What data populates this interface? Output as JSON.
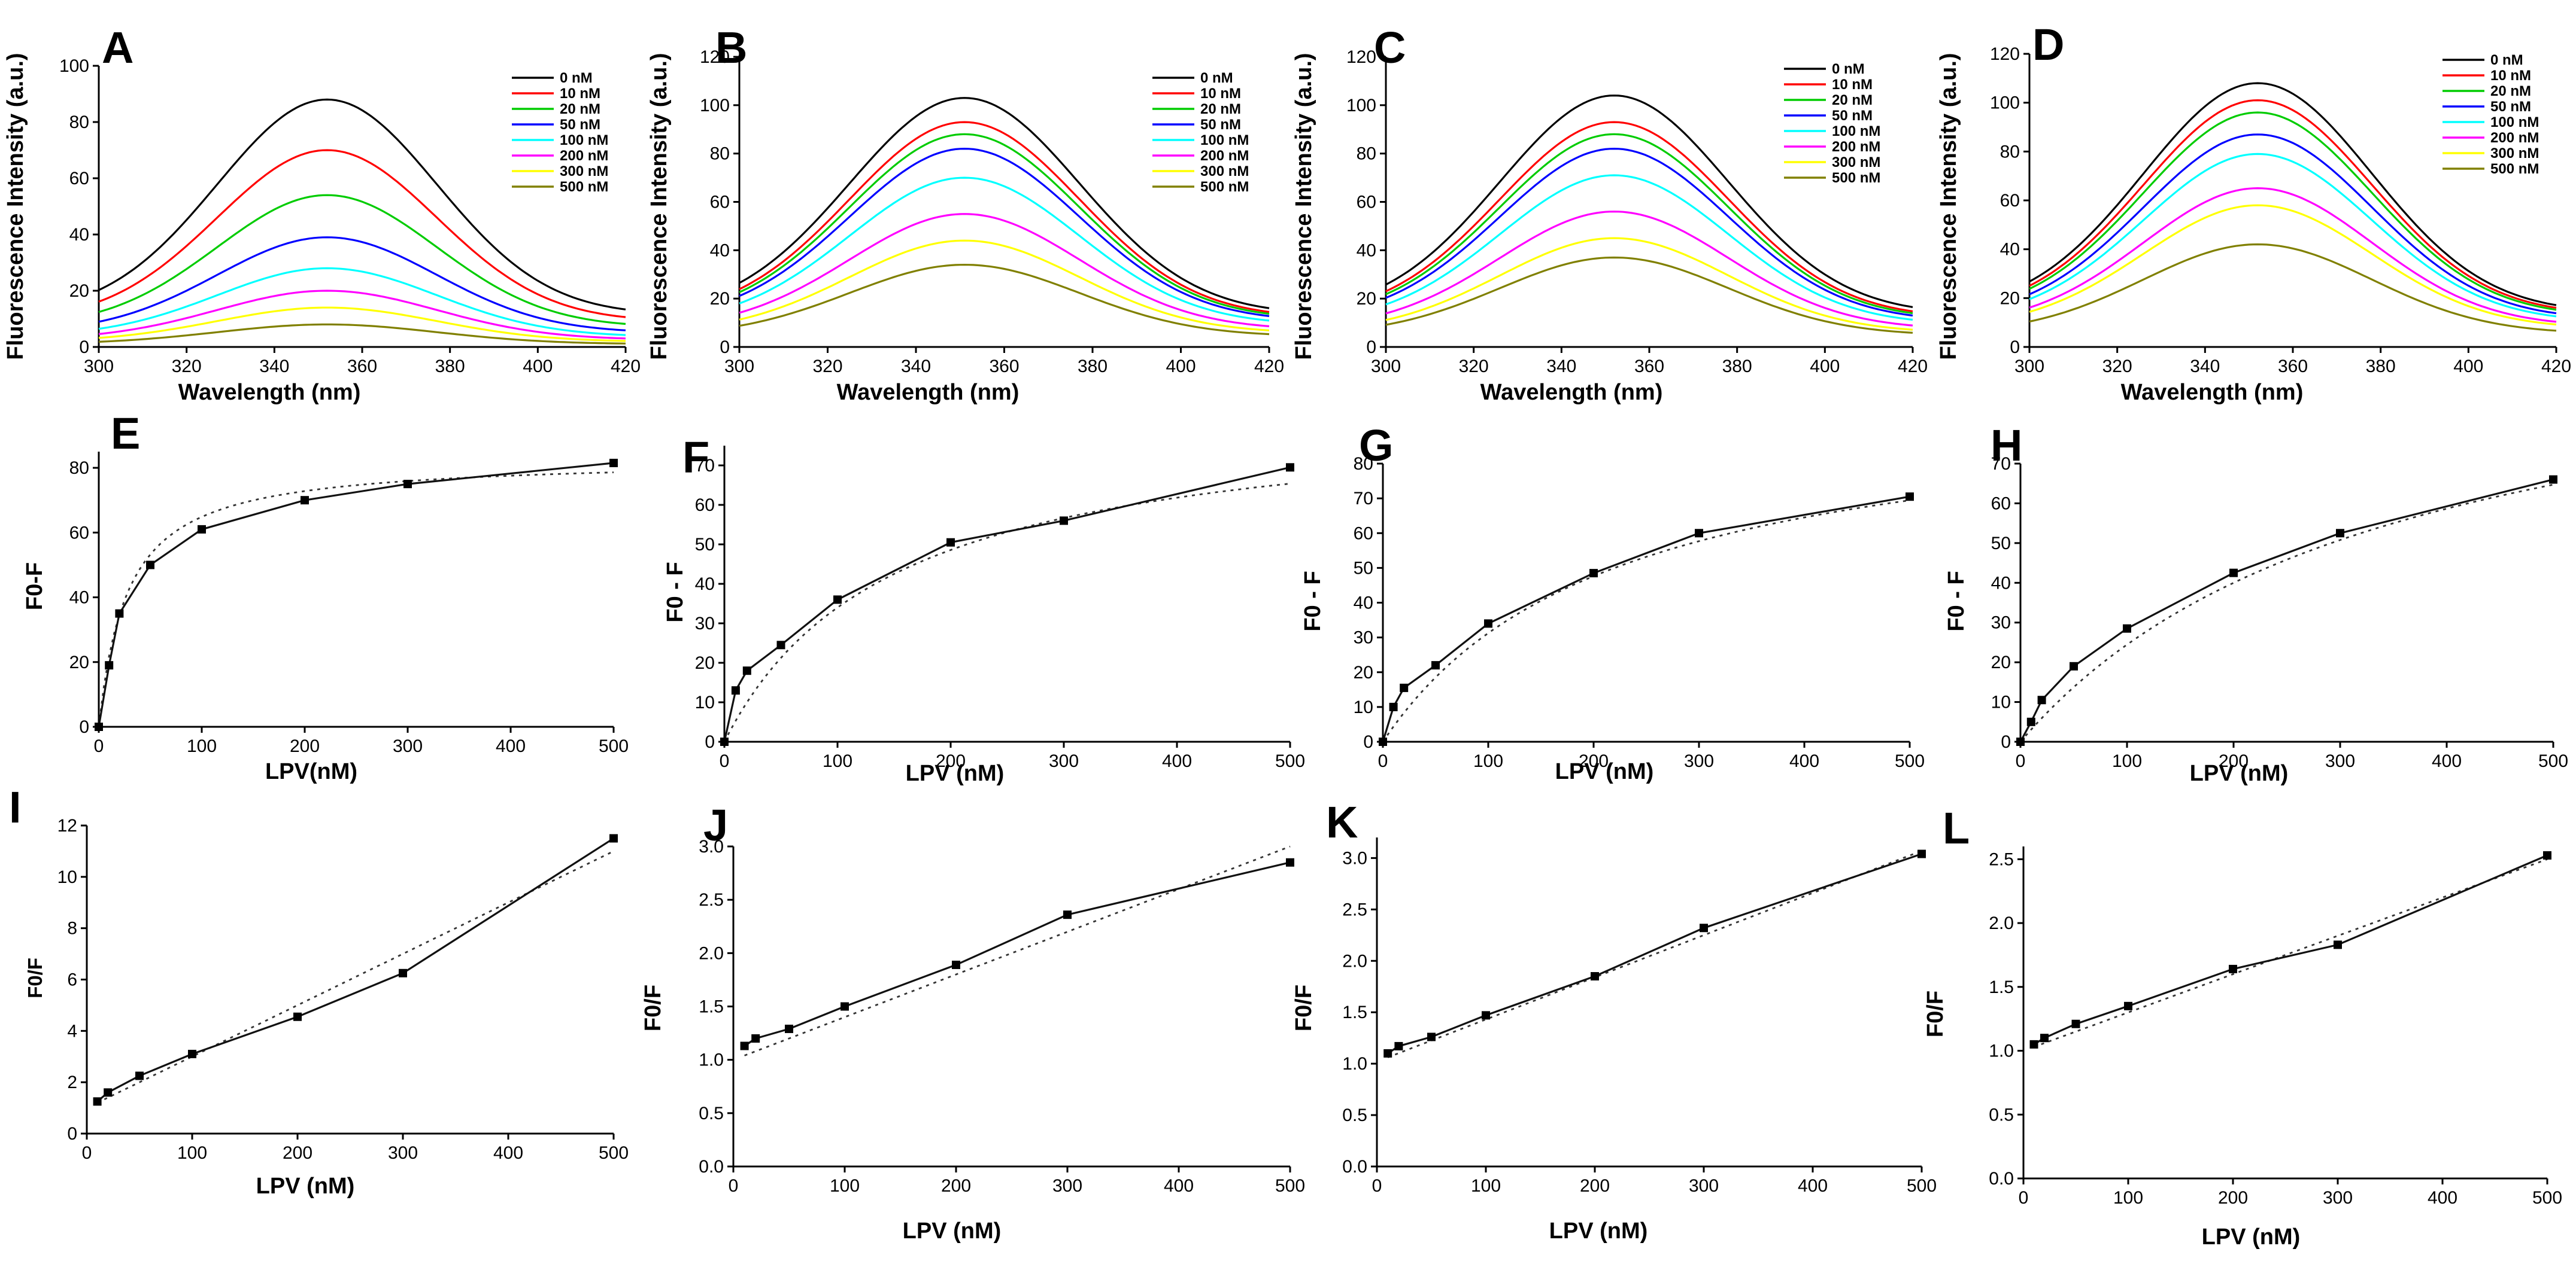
{
  "chart_data": [
    {
      "panel": "A",
      "type": "line",
      "xlabel": "Wavelength (nm)",
      "ylabel": "Fluorescence Intensity (a.u.)",
      "xlim": [
        300,
        420
      ],
      "ylim": [
        0,
        100
      ],
      "xticks": [
        300,
        320,
        340,
        360,
        380,
        400,
        420
      ],
      "yticks": [
        0,
        20,
        40,
        60,
        80,
        100
      ],
      "peak_center": 352,
      "spread": 25,
      "series": [
        {
          "name": "0 nM",
          "color": "#000000",
          "peak": 88
        },
        {
          "name": "10 nM",
          "color": "#ff0000",
          "peak": 70
        },
        {
          "name": "20 nM",
          "color": "#00cc00",
          "peak": 54
        },
        {
          "name": "50 nM",
          "color": "#0000ff",
          "peak": 39
        },
        {
          "name": "100 nM",
          "color": "#00ffff",
          "peak": 28
        },
        {
          "name": "200 nM",
          "color": "#ff00ff",
          "peak": 20
        },
        {
          "name": "300 nM",
          "color": "#ffff00",
          "peak": 14
        },
        {
          "name": "500 nM",
          "color": "#808000",
          "peak": 8
        }
      ]
    },
    {
      "panel": "B",
      "type": "line",
      "xlabel": "Wavelength (nm)",
      "ylabel": "Fluorescence Intensity (a.u.)",
      "xlim": [
        300,
        420
      ],
      "ylim": [
        0,
        120
      ],
      "xticks": [
        300,
        320,
        340,
        360,
        380,
        400,
        420
      ],
      "yticks": [
        0,
        20,
        40,
        60,
        80,
        100,
        120
      ],
      "peak_center": 351,
      "spread": 26,
      "series": [
        {
          "name": "0 nM",
          "color": "#000000",
          "peak": 103
        },
        {
          "name": "10 nM",
          "color": "#ff0000",
          "peak": 93
        },
        {
          "name": "20 nM",
          "color": "#00cc00",
          "peak": 88
        },
        {
          "name": "50 nM",
          "color": "#0000ff",
          "peak": 82
        },
        {
          "name": "100 nM",
          "color": "#00ffff",
          "peak": 70
        },
        {
          "name": "200 nM",
          "color": "#ff00ff",
          "peak": 55
        },
        {
          "name": "300 nM",
          "color": "#ffff00",
          "peak": 44
        },
        {
          "name": "500 nM",
          "color": "#808000",
          "peak": 34
        }
      ]
    },
    {
      "panel": "C",
      "type": "line",
      "xlabel": "Wavelength (nm)",
      "ylabel": "Fluorescence Intensity (a.u.)",
      "xlim": [
        300,
        420
      ],
      "ylim": [
        0,
        120
      ],
      "xticks": [
        300,
        320,
        340,
        360,
        380,
        400,
        420
      ],
      "yticks": [
        0,
        20,
        40,
        60,
        80,
        100,
        120
      ],
      "peak_center": 352,
      "spread": 26,
      "series": [
        {
          "name": "0 nM",
          "color": "#000000",
          "peak": 104
        },
        {
          "name": "10 nM",
          "color": "#ff0000",
          "peak": 93
        },
        {
          "name": "20 nM",
          "color": "#00cc00",
          "peak": 88
        },
        {
          "name": "50 nM",
          "color": "#0000ff",
          "peak": 82
        },
        {
          "name": "100 nM",
          "color": "#00ffff",
          "peak": 71
        },
        {
          "name": "200 nM",
          "color": "#ff00ff",
          "peak": 56
        },
        {
          "name": "300 nM",
          "color": "#ffff00",
          "peak": 45
        },
        {
          "name": "500 nM",
          "color": "#808000",
          "peak": 37
        }
      ]
    },
    {
      "panel": "D",
      "type": "line",
      "xlabel": "Wavelength (nm)",
      "ylabel": "Fluorescence Intensity (a.u.)",
      "xlim": [
        300,
        420
      ],
      "ylim": [
        0,
        120
      ],
      "xticks": [
        300,
        320,
        340,
        360,
        380,
        400,
        420
      ],
      "yticks": [
        0,
        20,
        40,
        60,
        80,
        100,
        120
      ],
      "peak_center": 352,
      "spread": 26,
      "series": [
        {
          "name": "0 nM",
          "color": "#000000",
          "peak": 108
        },
        {
          "name": "10 nM",
          "color": "#ff0000",
          "peak": 101
        },
        {
          "name": "20 nM",
          "color": "#00cc00",
          "peak": 96
        },
        {
          "name": "50 nM",
          "color": "#0000ff",
          "peak": 87
        },
        {
          "name": "100 nM",
          "color": "#00ffff",
          "peak": 79
        },
        {
          "name": "200 nM",
          "color": "#ff00ff",
          "peak": 65
        },
        {
          "name": "300 nM",
          "color": "#ffff00",
          "peak": 58
        },
        {
          "name": "500 nM",
          "color": "#808000",
          "peak": 42
        }
      ]
    },
    {
      "panel": "E",
      "type": "scatter",
      "xlabel": "LPV(nM)",
      "ylabel": "F0-F",
      "xlim": [
        0,
        500
      ],
      "ylim": [
        0,
        85
      ],
      "xticks": [
        0,
        100,
        200,
        300,
        400,
        500
      ],
      "yticks": [
        0,
        20,
        40,
        60,
        80
      ],
      "x": [
        0,
        10,
        20,
        50,
        100,
        200,
        300,
        500
      ],
      "y": [
        0,
        19,
        35,
        50,
        61,
        70,
        75,
        81.5
      ],
      "fit": {
        "kind": "binding",
        "Bmax": 83,
        "Kd": 28
      }
    },
    {
      "panel": "F",
      "type": "scatter",
      "xlabel": "LPV (nM)",
      "ylabel": "F0 - F",
      "xlim": [
        0,
        500
      ],
      "ylim": [
        0,
        75
      ],
      "xticks": [
        0,
        100,
        200,
        300,
        400,
        500
      ],
      "yticks": [
        0,
        10,
        20,
        30,
        40,
        50,
        60,
        70
      ],
      "x": [
        0,
        10,
        20,
        50,
        100,
        200,
        300,
        500
      ],
      "y": [
        0,
        13,
        18,
        24.5,
        36,
        50.5,
        56,
        69.5
      ],
      "fit": {
        "kind": "binding",
        "Bmax": 85,
        "Kd": 150
      }
    },
    {
      "panel": "G",
      "type": "scatter",
      "xlabel": "LPV (nM)",
      "ylabel": "F0 - F",
      "xlim": [
        0,
        500
      ],
      "ylim": [
        0,
        80
      ],
      "xticks": [
        0,
        100,
        200,
        300,
        400,
        500
      ],
      "yticks": [
        0,
        10,
        20,
        30,
        40,
        50,
        60,
        70,
        80
      ],
      "x": [
        0,
        10,
        20,
        50,
        100,
        200,
        300,
        500
      ],
      "y": [
        0,
        10,
        15.5,
        22,
        34,
        48.5,
        60,
        70.5
      ],
      "fit": {
        "kind": "binding",
        "Bmax": 100,
        "Kd": 220
      }
    },
    {
      "panel": "H",
      "type": "scatter",
      "xlabel": "LPV (nM)",
      "ylabel": "F0 - F",
      "xlim": [
        0,
        500
      ],
      "ylim": [
        0,
        70
      ],
      "xticks": [
        0,
        100,
        200,
        300,
        400,
        500
      ],
      "yticks": [
        0,
        10,
        20,
        30,
        40,
        50,
        60,
        70
      ],
      "x": [
        0,
        10,
        20,
        50,
        100,
        200,
        300,
        500
      ],
      "y": [
        0,
        5,
        10.5,
        19,
        28.5,
        42.5,
        52.5,
        66
      ],
      "fit": {
        "kind": "binding",
        "Bmax": 110,
        "Kd": 350
      }
    },
    {
      "panel": "I",
      "type": "scatter",
      "xlabel": "LPV (nM)",
      "ylabel": "F0/F",
      "xlim": [
        0,
        500
      ],
      "ylim": [
        0,
        12
      ],
      "xticks": [
        0,
        100,
        200,
        300,
        400,
        500
      ],
      "yticks": [
        0,
        2,
        4,
        6,
        8,
        10,
        12
      ],
      "x": [
        10,
        20,
        50,
        100,
        200,
        300,
        500
      ],
      "y": [
        1.25,
        1.6,
        2.25,
        3.1,
        4.55,
        6.25,
        11.5
      ],
      "fit": {
        "kind": "linear",
        "slope": 0.02,
        "intercept": 1.0
      }
    },
    {
      "panel": "J",
      "type": "scatter",
      "xlabel": "LPV (nM)",
      "ylabel": "F0/F",
      "xlim": [
        0,
        500
      ],
      "ylim": [
        0,
        3.0
      ],
      "xticks": [
        0,
        100,
        200,
        300,
        400,
        500
      ],
      "yticks": [
        0.0,
        0.5,
        1.0,
        1.5,
        2.0,
        2.5,
        3.0
      ],
      "ytick_decimals": 1,
      "x": [
        10,
        20,
        50,
        100,
        200,
        300,
        500
      ],
      "y": [
        1.13,
        1.2,
        1.29,
        1.5,
        1.89,
        2.36,
        2.85
      ],
      "fit": {
        "kind": "linear",
        "slope": 0.004,
        "intercept": 1.0
      }
    },
    {
      "panel": "K",
      "type": "scatter",
      "xlabel": "LPV (nM)",
      "ylabel": "F0/F",
      "xlim": [
        0,
        500
      ],
      "ylim": [
        0,
        3.2
      ],
      "xticks": [
        0,
        100,
        200,
        300,
        400,
        500
      ],
      "yticks": [
        0.0,
        0.5,
        1.0,
        1.5,
        2.0,
        2.5,
        3.0
      ],
      "ytick_decimals": 1,
      "x": [
        10,
        20,
        50,
        100,
        200,
        300,
        500
      ],
      "y": [
        1.1,
        1.17,
        1.26,
        1.47,
        1.85,
        2.32,
        3.04
      ],
      "fit": {
        "kind": "linear",
        "slope": 0.0041,
        "intercept": 1.02
      }
    },
    {
      "panel": "L",
      "type": "scatter",
      "xlabel": "LPV (nM)",
      "ylabel": "F0/F",
      "xlim": [
        0,
        500
      ],
      "ylim": [
        0,
        2.6
      ],
      "xticks": [
        0,
        100,
        200,
        300,
        400,
        500
      ],
      "yticks": [
        0.0,
        0.5,
        1.0,
        1.5,
        2.0,
        2.5
      ],
      "ytick_decimals": 1,
      "x": [
        10,
        20,
        50,
        100,
        200,
        300,
        500
      ],
      "y": [
        1.05,
        1.1,
        1.21,
        1.35,
        1.64,
        1.83,
        2.53
      ],
      "fit": {
        "kind": "linear",
        "slope": 0.003,
        "intercept": 1.0
      }
    }
  ]
}
